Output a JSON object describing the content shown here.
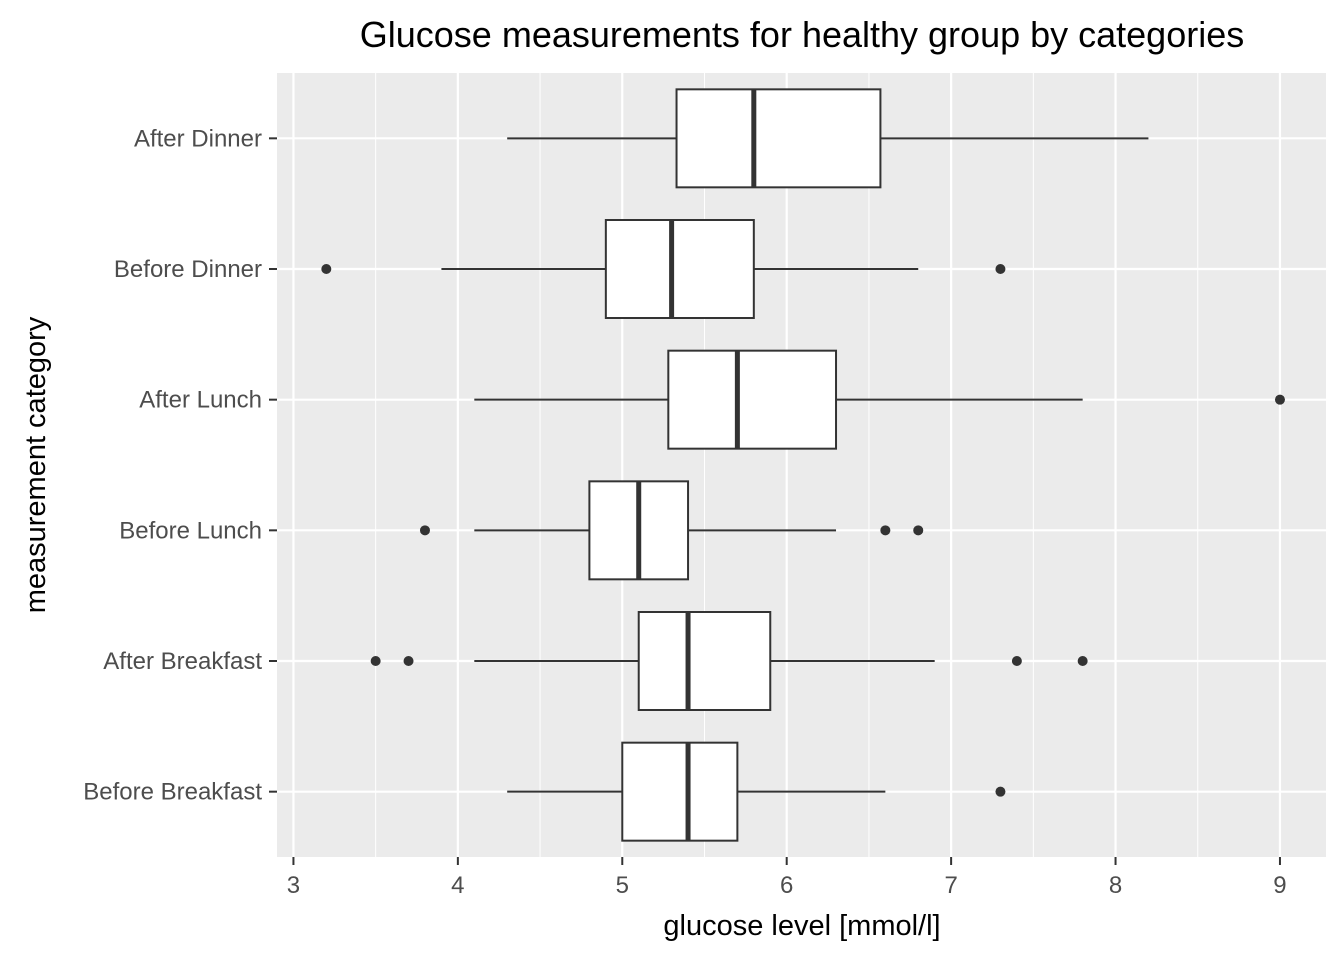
{
  "chart_data": {
    "type": "boxplot",
    "orientation": "horizontal",
    "title": "Glucose measurements for healthy group by categories",
    "xlabel": "glucose level [mmol/l]",
    "ylabel": "measurement category",
    "xlim": [
      2.9,
      9.28
    ],
    "xticks": [
      "3",
      "4",
      "5",
      "6",
      "7",
      "8",
      "9"
    ],
    "grid": true,
    "legend": "none",
    "colors": {
      "panel_background": "#ebebeb",
      "grid": "#ffffff",
      "box_fill": "#ffffff",
      "box_stroke": "#333333",
      "outlier": "#333333",
      "tick_label": "#4d4d4d"
    },
    "categories": [
      "Before Breakfast",
      "After Breakfast",
      "Before Lunch",
      "After Lunch",
      "Before Dinner",
      "After Dinner"
    ],
    "boxes": [
      {
        "category": "Before Breakfast",
        "whisker_low": 4.3,
        "q1": 5.0,
        "median": 5.4,
        "q3": 5.7,
        "whisker_high": 6.6,
        "outliers": [
          7.3
        ]
      },
      {
        "category": "After Breakfast",
        "whisker_low": 4.1,
        "q1": 5.1,
        "median": 5.4,
        "q3": 5.9,
        "whisker_high": 6.9,
        "outliers": [
          3.5,
          3.7,
          7.4,
          7.8
        ]
      },
      {
        "category": "Before Lunch",
        "whisker_low": 4.1,
        "q1": 4.8,
        "median": 5.1,
        "q3": 5.4,
        "whisker_high": 6.3,
        "outliers": [
          3.8,
          6.6,
          6.8
        ]
      },
      {
        "category": "After Lunch",
        "whisker_low": 4.1,
        "q1": 5.28,
        "median": 5.7,
        "q3": 6.3,
        "whisker_high": 7.8,
        "outliers": [
          9.0
        ]
      },
      {
        "category": "Before Dinner",
        "whisker_low": 3.9,
        "q1": 4.9,
        "median": 5.3,
        "q3": 5.8,
        "whisker_high": 6.8,
        "outliers": [
          3.2,
          7.3
        ]
      },
      {
        "category": "After Dinner",
        "whisker_low": 4.3,
        "q1": 5.33,
        "median": 5.8,
        "q3": 6.57,
        "whisker_high": 8.2,
        "outliers": []
      }
    ]
  }
}
